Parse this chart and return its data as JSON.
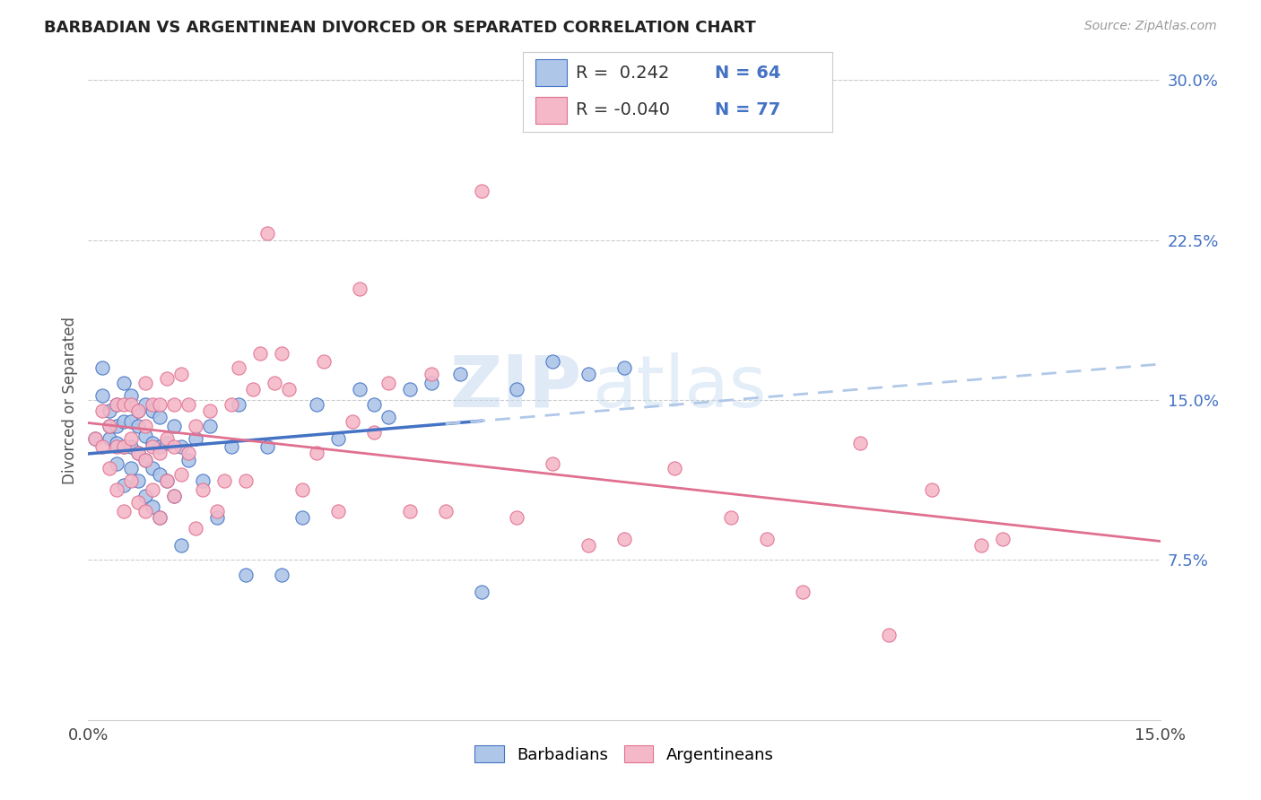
{
  "title": "BARBADIAN VS ARGENTINEAN DIVORCED OR SEPARATED CORRELATION CHART",
  "source": "Source: ZipAtlas.com",
  "ylabel": "Divorced or Separated",
  "xlim": [
    0.0,
    0.15
  ],
  "ylim": [
    0.0,
    0.3
  ],
  "ytick_labels": [
    "7.5%",
    "15.0%",
    "22.5%",
    "30.0%"
  ],
  "ytick_positions": [
    0.075,
    0.15,
    0.225,
    0.3
  ],
  "color_blue": "#aec6e8",
  "color_pink": "#f4b8c8",
  "line_blue": "#4472c4",
  "line_pink": "#e07090",
  "line_blue_ext": "#b0c8e8",
  "watermark_zip": "ZIP",
  "watermark_atlas": "atlas",
  "barbadians_x": [
    0.001,
    0.002,
    0.002,
    0.003,
    0.003,
    0.003,
    0.004,
    0.004,
    0.004,
    0.004,
    0.005,
    0.005,
    0.005,
    0.005,
    0.006,
    0.006,
    0.006,
    0.006,
    0.007,
    0.007,
    0.007,
    0.007,
    0.008,
    0.008,
    0.008,
    0.008,
    0.009,
    0.009,
    0.009,
    0.009,
    0.01,
    0.01,
    0.01,
    0.01,
    0.011,
    0.011,
    0.012,
    0.012,
    0.013,
    0.013,
    0.014,
    0.015,
    0.016,
    0.017,
    0.018,
    0.02,
    0.021,
    0.022,
    0.025,
    0.027,
    0.03,
    0.032,
    0.035,
    0.038,
    0.04,
    0.042,
    0.045,
    0.048,
    0.052,
    0.055,
    0.06,
    0.065,
    0.07,
    0.075
  ],
  "barbadians_y": [
    0.132,
    0.165,
    0.152,
    0.132,
    0.138,
    0.145,
    0.12,
    0.13,
    0.138,
    0.148,
    0.11,
    0.128,
    0.14,
    0.158,
    0.118,
    0.128,
    0.14,
    0.152,
    0.112,
    0.125,
    0.138,
    0.145,
    0.105,
    0.122,
    0.133,
    0.148,
    0.1,
    0.118,
    0.13,
    0.145,
    0.095,
    0.115,
    0.128,
    0.142,
    0.112,
    0.13,
    0.105,
    0.138,
    0.082,
    0.128,
    0.122,
    0.132,
    0.112,
    0.138,
    0.095,
    0.128,
    0.148,
    0.068,
    0.128,
    0.068,
    0.095,
    0.148,
    0.132,
    0.155,
    0.148,
    0.142,
    0.155,
    0.158,
    0.162,
    0.06,
    0.155,
    0.168,
    0.162,
    0.165
  ],
  "argentineans_x": [
    0.001,
    0.002,
    0.002,
    0.003,
    0.003,
    0.004,
    0.004,
    0.004,
    0.005,
    0.005,
    0.005,
    0.006,
    0.006,
    0.006,
    0.007,
    0.007,
    0.007,
    0.008,
    0.008,
    0.008,
    0.008,
    0.009,
    0.009,
    0.009,
    0.01,
    0.01,
    0.01,
    0.011,
    0.011,
    0.011,
    0.012,
    0.012,
    0.012,
    0.013,
    0.013,
    0.014,
    0.014,
    0.015,
    0.015,
    0.016,
    0.017,
    0.018,
    0.019,
    0.02,
    0.021,
    0.022,
    0.023,
    0.024,
    0.025,
    0.026,
    0.027,
    0.028,
    0.03,
    0.032,
    0.033,
    0.035,
    0.037,
    0.038,
    0.04,
    0.042,
    0.045,
    0.048,
    0.05,
    0.055,
    0.06,
    0.065,
    0.07,
    0.075,
    0.082,
    0.09,
    0.095,
    0.1,
    0.108,
    0.112,
    0.118,
    0.125,
    0.128
  ],
  "argentineans_y": [
    0.132,
    0.128,
    0.145,
    0.118,
    0.138,
    0.108,
    0.128,
    0.148,
    0.098,
    0.128,
    0.148,
    0.112,
    0.132,
    0.148,
    0.102,
    0.125,
    0.145,
    0.098,
    0.122,
    0.138,
    0.158,
    0.108,
    0.128,
    0.148,
    0.095,
    0.125,
    0.148,
    0.112,
    0.132,
    0.16,
    0.105,
    0.128,
    0.148,
    0.115,
    0.162,
    0.125,
    0.148,
    0.09,
    0.138,
    0.108,
    0.145,
    0.098,
    0.112,
    0.148,
    0.165,
    0.112,
    0.155,
    0.172,
    0.228,
    0.158,
    0.172,
    0.155,
    0.108,
    0.125,
    0.168,
    0.098,
    0.14,
    0.202,
    0.135,
    0.158,
    0.098,
    0.162,
    0.098,
    0.248,
    0.095,
    0.12,
    0.082,
    0.085,
    0.118,
    0.095,
    0.085,
    0.06,
    0.13,
    0.04,
    0.108,
    0.082,
    0.085
  ]
}
